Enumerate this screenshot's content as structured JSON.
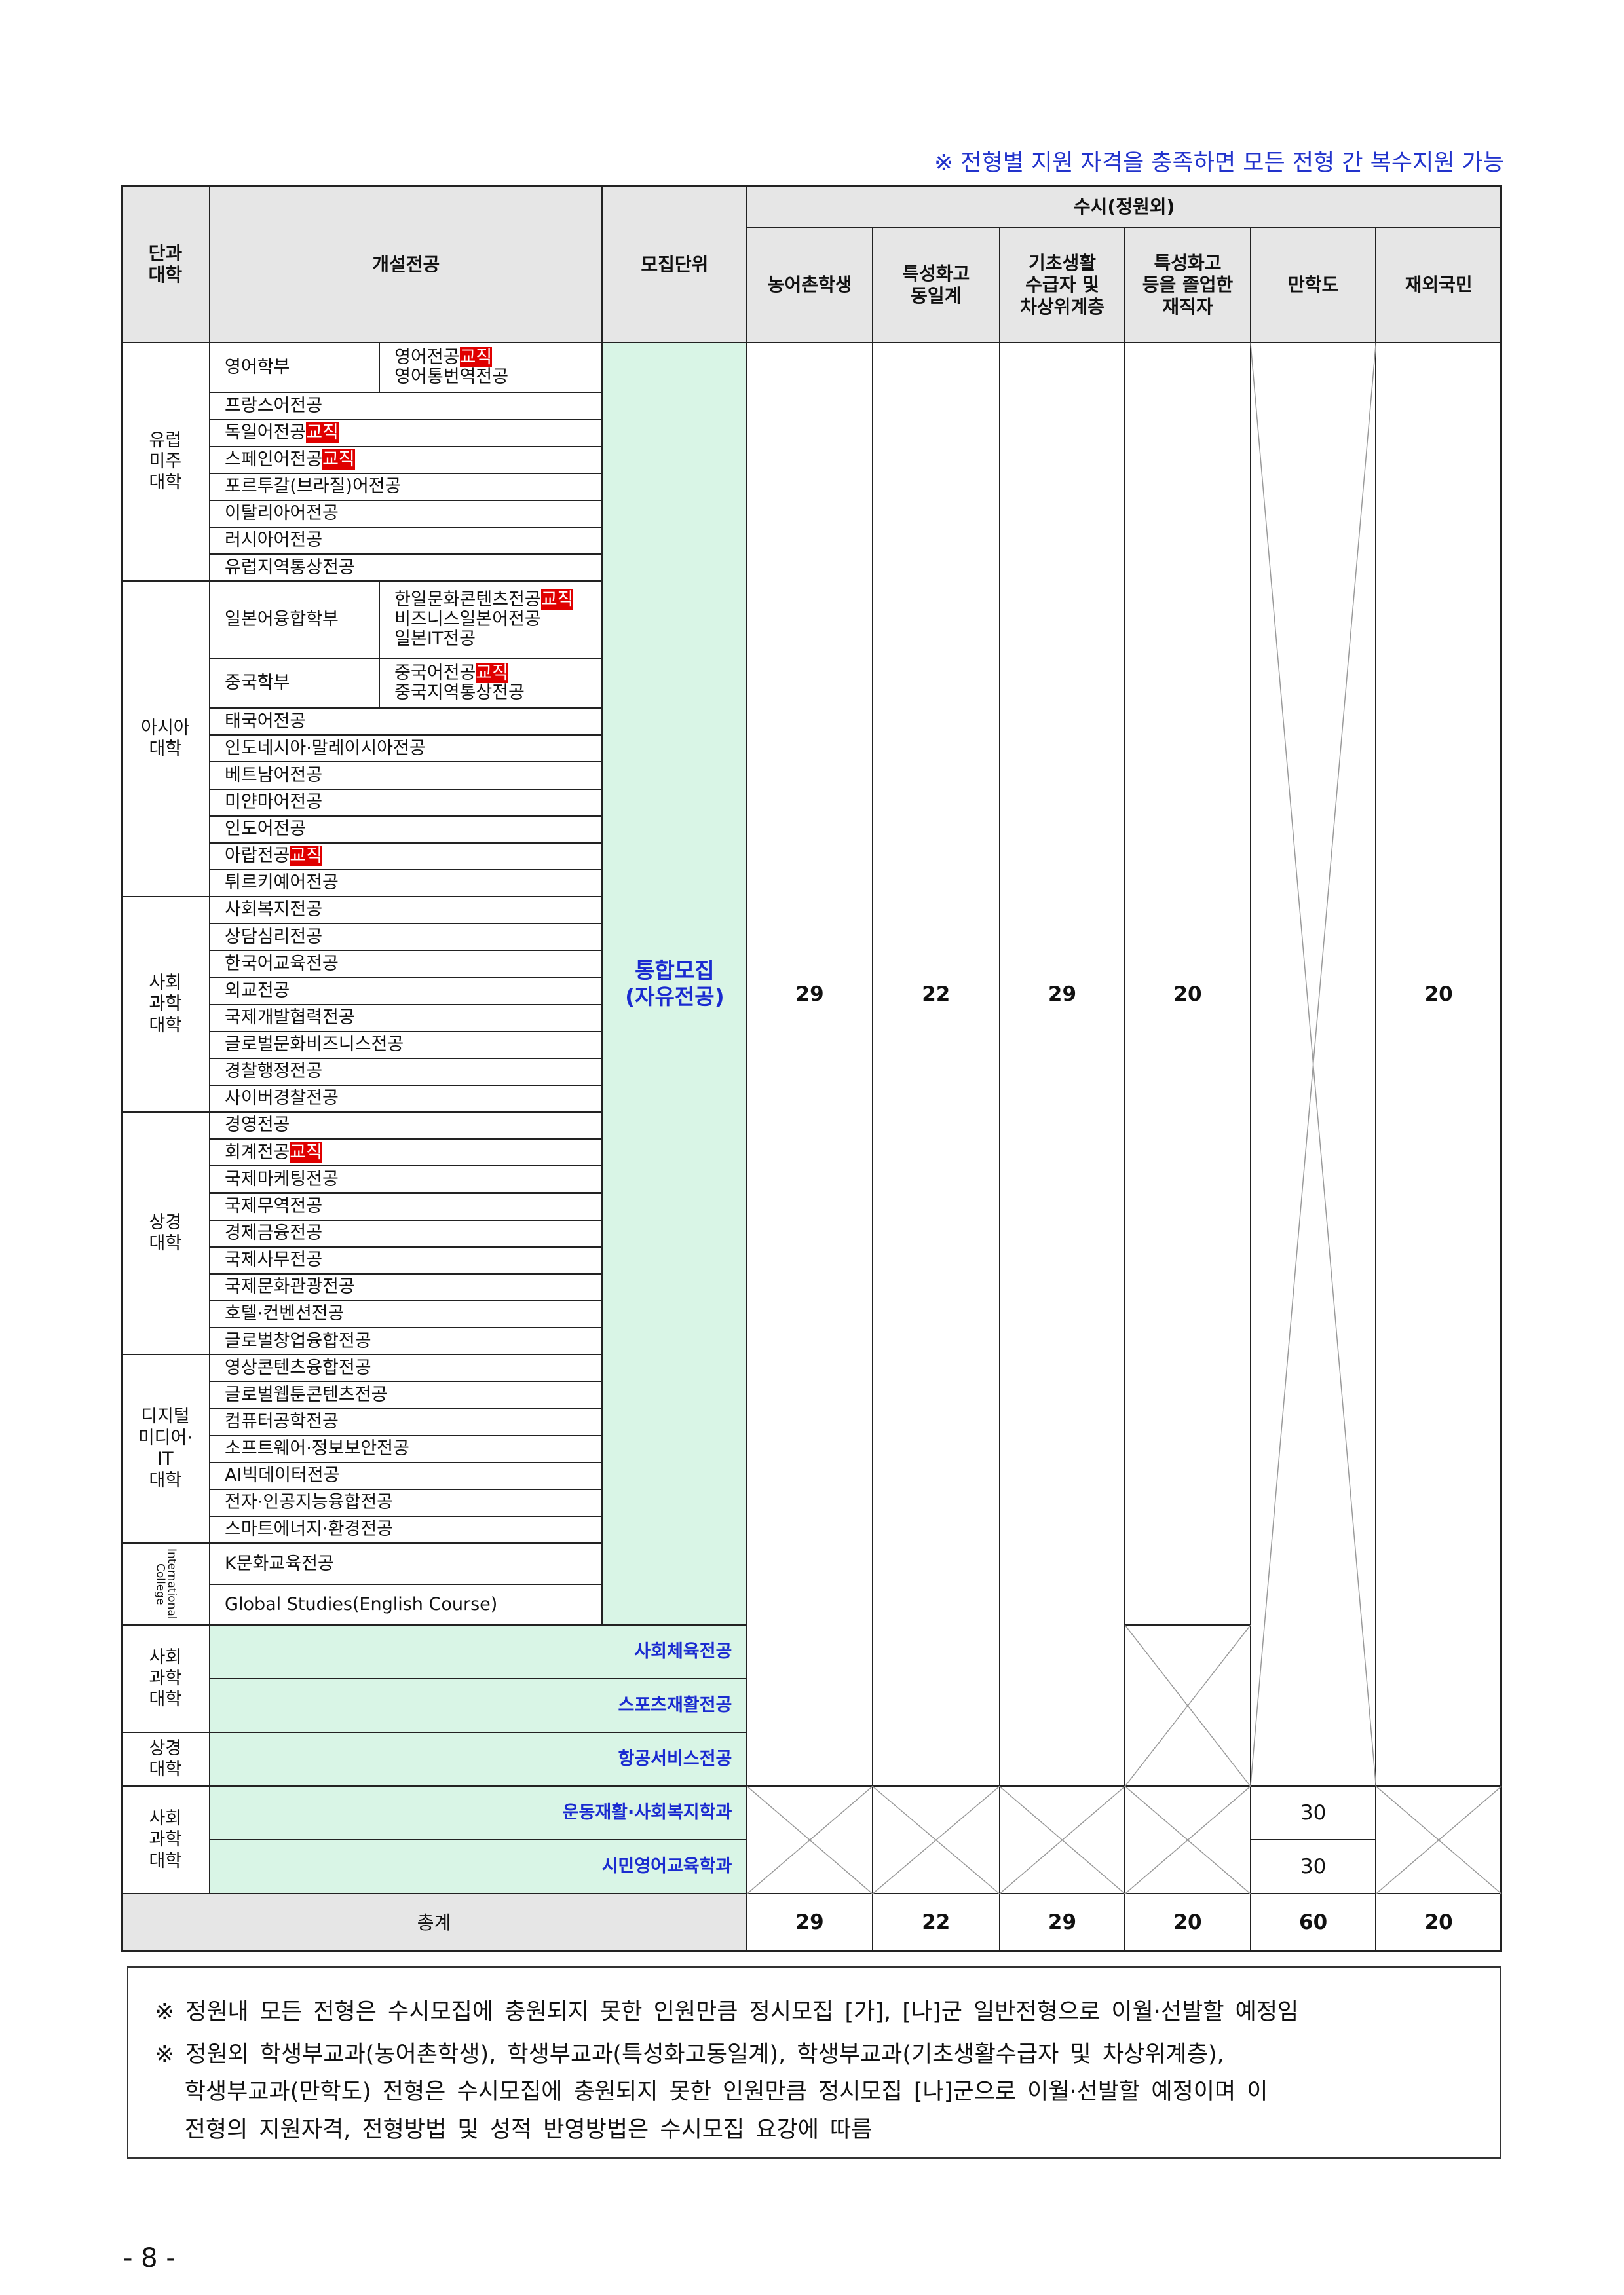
{
  "notice": "※ 전형별 지원 자격을 충족하면 모든 전형 간 복수지원 가능",
  "table": {
    "headers": {
      "college": "단과\n대학",
      "major": "개설전공",
      "unit": "모집단위",
      "group": "수시(정원외)",
      "columns": [
        "농어촌학생",
        "특성화고\n동일계",
        "기초생활\n수급자 및\n차상위계층",
        "특성화고\n등을 졸업한\n재직자",
        "만학도",
        "재외국민"
      ]
    },
    "colleges": [
      {
        "name": "유럽\n미주\n대학",
        "rows": [
          {
            "dept": "영어학부",
            "majors": [
              {
                "name": "영어전공",
                "tag": "교직"
              },
              {
                "name": "영어통번역전공"
              }
            ]
          },
          {
            "majors": [
              {
                "name": "프랑스어전공"
              }
            ]
          },
          {
            "majors": [
              {
                "name": "독일어전공",
                "tag": "교직"
              }
            ]
          },
          {
            "majors": [
              {
                "name": "스페인어전공",
                "tag": "교직"
              }
            ]
          },
          {
            "majors": [
              {
                "name": "포르투갈(브라질)어전공"
              }
            ]
          },
          {
            "majors": [
              {
                "name": "이탈리아어전공"
              }
            ]
          },
          {
            "majors": [
              {
                "name": "러시아어전공"
              }
            ]
          },
          {
            "majors": [
              {
                "name": "유럽지역통상전공"
              }
            ]
          }
        ]
      },
      {
        "name": "아시아\n대학",
        "rows": [
          {
            "dept": "일본어융합학부",
            "majors": [
              {
                "name": "한일문화콘텐츠전공",
                "tag": "교직"
              },
              {
                "name": "비즈니스일본어전공"
              },
              {
                "name": "일본IT전공"
              }
            ]
          },
          {
            "dept": "중국학부",
            "majors": [
              {
                "name": "중국어전공",
                "tag": "교직"
              },
              {
                "name": "중국지역통상전공"
              }
            ]
          },
          {
            "majors": [
              {
                "name": "태국어전공"
              }
            ]
          },
          {
            "majors": [
              {
                "name": "인도네시아·말레이시아전공"
              }
            ]
          },
          {
            "majors": [
              {
                "name": "베트남어전공"
              }
            ]
          },
          {
            "majors": [
              {
                "name": "미얀마어전공"
              }
            ]
          },
          {
            "majors": [
              {
                "name": "인도어전공"
              }
            ]
          },
          {
            "majors": [
              {
                "name": "아랍전공",
                "tag": "교직"
              }
            ]
          },
          {
            "majors": [
              {
                "name": "튀르키예어전공"
              }
            ]
          }
        ]
      },
      {
        "name": "사회\n과학\n대학",
        "rows": [
          {
            "majors": [
              {
                "name": "사회복지전공"
              }
            ]
          },
          {
            "majors": [
              {
                "name": "상담심리전공"
              }
            ]
          },
          {
            "majors": [
              {
                "name": "한국어교육전공"
              }
            ]
          },
          {
            "majors": [
              {
                "name": "외교전공"
              }
            ]
          },
          {
            "majors": [
              {
                "name": "국제개발협력전공"
              }
            ]
          },
          {
            "majors": [
              {
                "name": "글로벌문화비즈니스전공"
              }
            ]
          },
          {
            "majors": [
              {
                "name": "경찰행정전공"
              }
            ]
          },
          {
            "majors": [
              {
                "name": "사이버경찰전공"
              }
            ]
          }
        ]
      },
      {
        "name": "상경\n대학",
        "rows": [
          {
            "majors": [
              {
                "name": "경영전공"
              }
            ]
          },
          {
            "majors": [
              {
                "name": "회계전공",
                "tag": "교직"
              }
            ]
          },
          {
            "majors": [
              {
                "name": "국제마케팅전공"
              }
            ]
          },
          {
            "majors": [
              {
                "name": "국제무역전공"
              }
            ]
          },
          {
            "majors": [
              {
                "name": "경제금융전공"
              }
            ]
          },
          {
            "majors": [
              {
                "name": "국제사무전공"
              }
            ]
          },
          {
            "majors": [
              {
                "name": "국제문화관광전공"
              }
            ]
          },
          {
            "majors": [
              {
                "name": "호텔·컨벤션전공"
              }
            ]
          },
          {
            "majors": [
              {
                "name": "글로벌창업융합전공"
              }
            ]
          }
        ]
      },
      {
        "name": "디지털\n미디어·\nIT\n대학",
        "rows": [
          {
            "majors": [
              {
                "name": "영상콘텐츠융합전공"
              }
            ]
          },
          {
            "majors": [
              {
                "name": "글로벌웹툰콘텐츠전공"
              }
            ]
          },
          {
            "majors": [
              {
                "name": "컴퓨터공학전공"
              }
            ]
          },
          {
            "majors": [
              {
                "name": "소프트웨어·정보보안전공"
              }
            ]
          },
          {
            "majors": [
              {
                "name": "AI빅데이터전공"
              }
            ]
          },
          {
            "majors": [
              {
                "name": "전자·인공지능융합전공"
              }
            ]
          },
          {
            "majors": [
              {
                "name": "스마트에너지·환경전공"
              }
            ]
          }
        ]
      },
      {
        "name": "International\nCollege",
        "rows": [
          {
            "majors": [
              {
                "name": "K문화교육전공"
              }
            ]
          },
          {
            "majors": [
              {
                "name": "Global Studies(English Course)"
              }
            ]
          }
        ]
      }
    ],
    "integrated": {
      "unit": "통합모집\n(자유전공)",
      "values": [
        29,
        22,
        29,
        20,
        20
      ]
    },
    "separate": [
      {
        "college": "사회\n과학\n대학",
        "units": [
          "사회체육전공",
          "스포츠재활전공"
        ]
      },
      {
        "college": "상경\n대학",
        "units": [
          "항공서비스전공"
        ]
      }
    ],
    "late": {
      "college": "사회\n과학\n대학",
      "units": [
        {
          "name": "운동재활·사회복지학과",
          "value": 30
        },
        {
          "name": "시민영어교육학과",
          "value": 30
        }
      ]
    },
    "total": {
      "label": "총계",
      "values": [
        29,
        22,
        29,
        20,
        60,
        20
      ]
    }
  },
  "footnotes": [
    "※ 정원내 모든 전형은 수시모집에 충원되지 못한 인원만큼 정시모집 [가], [나]군 일반전형으로 이월·선발할 예정임",
    "※ 정원외 학생부교과(농어촌학생), 학생부교과(특성화고동일계), 학생부교과(기초생활수급자 및 차상위계층),",
    "학생부교과(만학도) 전형은 수시모집에 충원되지 못한 인원만큼 정시모집 [나]군으로 이월·선발할 예정이며 이",
    "전형의 지원자격, 전형방법 및 성적 반영방법은 수시모집 요강에 따름"
  ],
  "page_number": "- 8 -"
}
